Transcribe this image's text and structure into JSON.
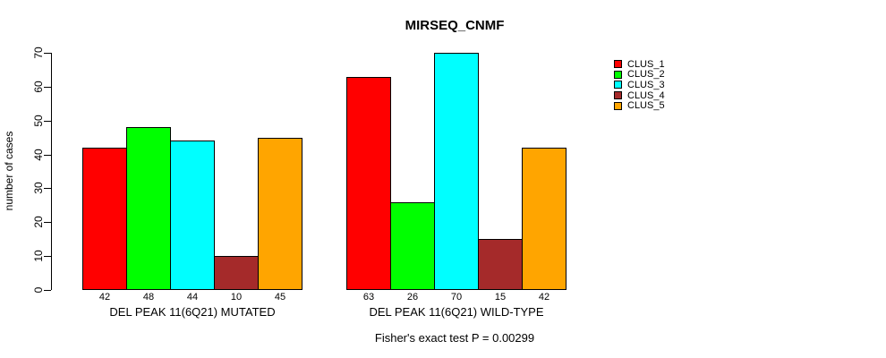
{
  "title": "MIRSEQ_CNMF",
  "subtitle": "Fisher's exact test P = 0.00299",
  "ylabel": "number of cases",
  "colors": {
    "clus_1": "#FF0000",
    "clus_2": "#00FF00",
    "clus_3": "#00FFFF",
    "clus_4": "#A52A2A",
    "clus_5": "#FFA500"
  },
  "chart_data": {
    "type": "bar",
    "grouped": true,
    "title": "MIRSEQ_CNMF",
    "xlabel": "",
    "ylabel": "number of cases",
    "ylim": [
      0,
      70
    ],
    "yticks": [
      0,
      10,
      20,
      30,
      40,
      50,
      60,
      70
    ],
    "grid": false,
    "legend_position": "top-right",
    "bar_value_labels_shown": true,
    "categories": [
      "DEL PEAK 11(6Q21) MUTATED",
      "DEL PEAK 11(6Q21) WILD-TYPE"
    ],
    "series": [
      {
        "name": "CLUS_1",
        "color": "#FF0000",
        "values": [
          42,
          63
        ]
      },
      {
        "name": "CLUS_2",
        "color": "#00FF00",
        "values": [
          48,
          26
        ]
      },
      {
        "name": "CLUS_3",
        "color": "#00FFFF",
        "values": [
          44,
          70
        ]
      },
      {
        "name": "CLUS_4",
        "color": "#A52A2A",
        "values": [
          10,
          15
        ]
      },
      {
        "name": "CLUS_5",
        "color": "#FFA500",
        "values": [
          45,
          42
        ]
      }
    ],
    "annotation": "Fisher's exact test P = 0.00299"
  }
}
